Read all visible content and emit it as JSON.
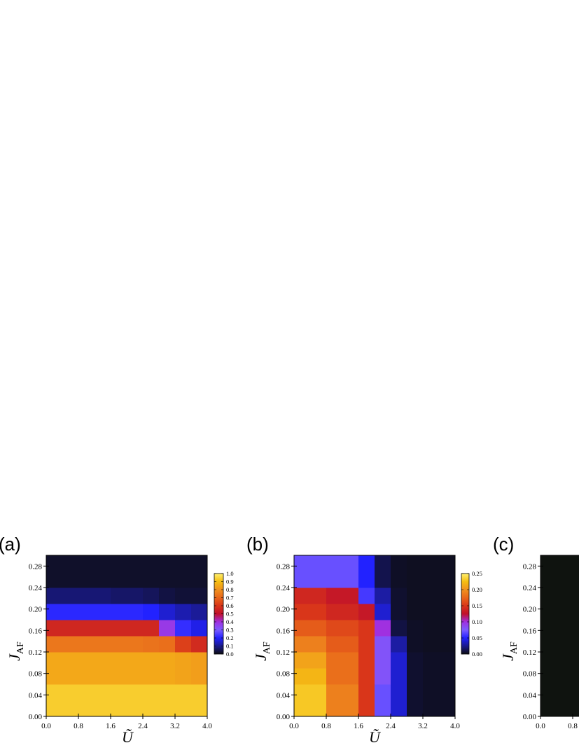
{
  "chart_data": [
    {
      "type": "heatmap",
      "panel": "(a)",
      "xlabel": "Ũ",
      "ylabel": "J_AF",
      "x_ticks": [
        "0.0",
        "0.8",
        "1.6",
        "2.4",
        "3.2",
        "4.0"
      ],
      "y_ticks": [
        "0.00",
        "0.04",
        "0.08",
        "0.12",
        "0.16",
        "0.20",
        "0.24",
        "0.28"
      ],
      "xlim": [
        0,
        4.0
      ],
      "ylim": [
        0,
        0.3
      ],
      "x_edges": [
        0,
        0.8,
        1.6,
        2.4,
        2.8,
        3.2,
        3.6,
        4.0
      ],
      "y_edges": [
        0,
        0.06,
        0.09,
        0.12,
        0.15,
        0.18,
        0.21,
        0.24,
        0.27,
        0.3
      ],
      "values": [
        [
          0.93,
          0.93,
          0.93,
          0.93,
          0.93,
          0.93,
          0.93
        ],
        [
          0.85,
          0.85,
          0.85,
          0.85,
          0.85,
          0.84,
          0.83
        ],
        [
          0.85,
          0.85,
          0.85,
          0.85,
          0.85,
          0.84,
          0.83
        ],
        [
          0.74,
          0.74,
          0.74,
          0.73,
          0.72,
          0.62,
          0.57
        ],
        [
          0.56,
          0.56,
          0.56,
          0.56,
          0.38,
          0.22,
          0.18
        ],
        [
          0.21,
          0.21,
          0.21,
          0.2,
          0.16,
          0.13,
          0.11
        ],
        [
          0.08,
          0.08,
          0.07,
          0.06,
          0.04,
          0.03,
          0.03
        ],
        [
          0.02,
          0.02,
          0.02,
          0.02,
          0.02,
          0.02,
          0.02
        ],
        [
          0.02,
          0.02,
          0.02,
          0.02,
          0.02,
          0.02,
          0.02
        ]
      ],
      "colorbar": {
        "min": 0.0,
        "max": 1.0,
        "ticks": [
          "0.0",
          "0.1",
          "0.2",
          "0.3",
          "0.4",
          "0.5",
          "0.6",
          "0.7",
          "0.8",
          "0.9",
          "1.0"
        ]
      }
    },
    {
      "type": "heatmap",
      "panel": "(b)",
      "xlabel": "Ũ",
      "ylabel": "J_AF",
      "x_ticks": [
        "0.0",
        "0.8",
        "1.6",
        "2.4",
        "3.2",
        "4.0"
      ],
      "y_ticks": [
        "0.00",
        "0.04",
        "0.08",
        "0.12",
        "0.16",
        "0.20",
        "0.24",
        "0.28"
      ],
      "xlim": [
        0,
        4.0
      ],
      "ylim": [
        0,
        0.3
      ],
      "x_edges": [
        0,
        0.8,
        1.6,
        2.0,
        2.4,
        2.8,
        3.2,
        4.0
      ],
      "y_edges": [
        0,
        0.06,
        0.09,
        0.12,
        0.15,
        0.18,
        0.21,
        0.24,
        0.27,
        0.3
      ],
      "values": [
        [
          0.23,
          0.19,
          0.15,
          0.07,
          0.04,
          0.006,
          0.004
        ],
        [
          0.22,
          0.18,
          0.15,
          0.08,
          0.04,
          0.006,
          0.004
        ],
        [
          0.21,
          0.18,
          0.15,
          0.08,
          0.04,
          0.006,
          0.004
        ],
        [
          0.19,
          0.17,
          0.15,
          0.08,
          0.03,
          0.004,
          0.003
        ],
        [
          0.17,
          0.16,
          0.15,
          0.1,
          0.01,
          0.004,
          0.003
        ],
        [
          0.15,
          0.14,
          0.13,
          0.04,
          0.006,
          0.003,
          0.003
        ],
        [
          0.14,
          0.13,
          0.06,
          0.03,
          0.006,
          0.003,
          0.003
        ],
        [
          0.07,
          0.07,
          0.05,
          0.012,
          0.004,
          0.003,
          0.003
        ],
        [
          0.07,
          0.07,
          0.05,
          0.012,
          0.004,
          0.003,
          0.003
        ]
      ],
      "colorbar": {
        "min": 0.0,
        "max": 0.25,
        "ticks": [
          "0.00",
          "0.05",
          "0.10",
          "0.15",
          "0.20",
          "0.25"
        ]
      }
    },
    {
      "type": "heatmap",
      "panel": "(c)",
      "xlabel": "",
      "ylabel": "J_AF",
      "x_ticks": [
        "0.0",
        "0.8"
      ],
      "y_ticks": [
        "0.00",
        "0.04",
        "0.08",
        "0.12",
        "0.16",
        "0.20",
        "0.24",
        "0.28"
      ],
      "ylim": [
        0,
        0.3
      ],
      "fill_color": "#0f130f"
    }
  ],
  "colors": {
    "background": "#ffffff",
    "colormap": [
      "#0d0d12",
      "#1a1a8c",
      "#2222ff",
      "#7a5cff",
      "#a030e0",
      "#c0102a",
      "#d9361a",
      "#e8661a",
      "#f0911f",
      "#f5be12",
      "#fff070"
    ]
  }
}
